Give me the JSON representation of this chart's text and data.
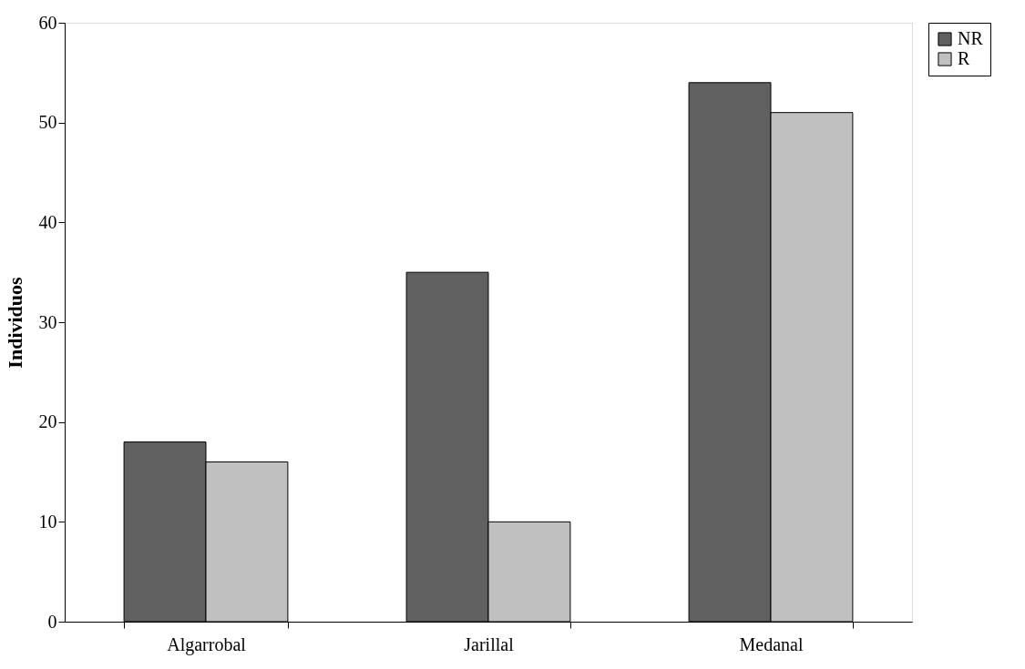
{
  "chart_data": {
    "type": "bar",
    "ylabel": "Individuos",
    "categories": [
      "Algarrobal",
      "Jarillal",
      "Medanal"
    ],
    "series": [
      {
        "name": "NR",
        "color": "#606060",
        "values": [
          18,
          35,
          54
        ]
      },
      {
        "name": "R",
        "color": "#c0c0c0",
        "values": [
          16,
          10,
          51
        ]
      }
    ],
    "ylim": [
      0,
      60
    ],
    "yticks": [
      0,
      10,
      20,
      30,
      40,
      50,
      60
    ],
    "grid": false,
    "legend": "right"
  }
}
